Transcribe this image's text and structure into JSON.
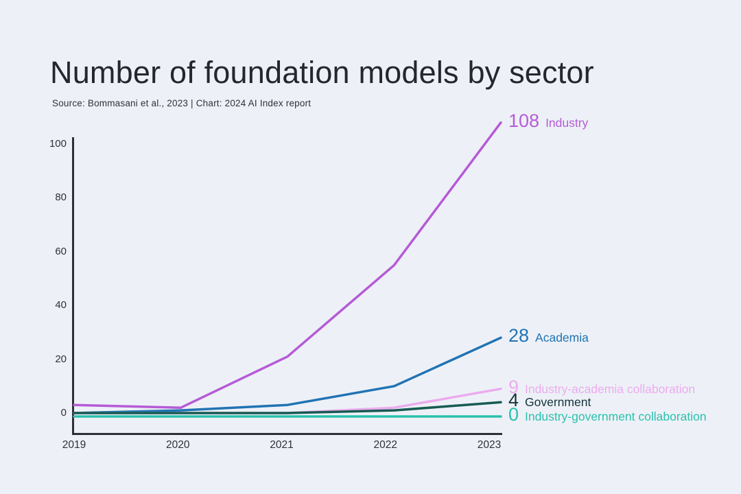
{
  "header": {
    "title": "Number of foundation models by sector",
    "subtitle": "Source: Bommasani et al., 2023 | Chart: 2024 AI Index report"
  },
  "chart_data": {
    "type": "line",
    "title": "Number of foundation models by sector",
    "source_note": "Source: Bommasani et al., 2023 | Chart: 2024 AI Index report",
    "categories": [
      2019,
      2020,
      2021,
      2022,
      2023
    ],
    "series": [
      {
        "name": "Industry",
        "values": [
          3,
          2,
          21,
          55,
          108
        ],
        "color": "#b65bd6"
      },
      {
        "name": "Academia",
        "values": [
          0,
          1,
          3,
          10,
          28
        ],
        "color": "#2173b4"
      },
      {
        "name": "Industry-academia collaboration",
        "values": [
          0,
          0,
          0,
          2,
          9
        ],
        "color": "#ecabee"
      },
      {
        "name": "Government",
        "values": [
          0,
          0,
          0,
          1,
          4
        ],
        "color": "#175b53",
        "label_color": "#14333a"
      },
      {
        "name": "Industry-government collaboration",
        "values": [
          0,
          0,
          0,
          0,
          0
        ],
        "color": "#2bc0ad"
      }
    ],
    "xlabel": "",
    "ylabel": "",
    "ylim": [
      0,
      100
    ],
    "yticks": [
      0,
      20,
      40,
      60,
      80,
      100
    ],
    "grid": false,
    "legend_position": "line-end-labels",
    "background_color": "#edf1f7",
    "axis_color": "#2d3137"
  }
}
